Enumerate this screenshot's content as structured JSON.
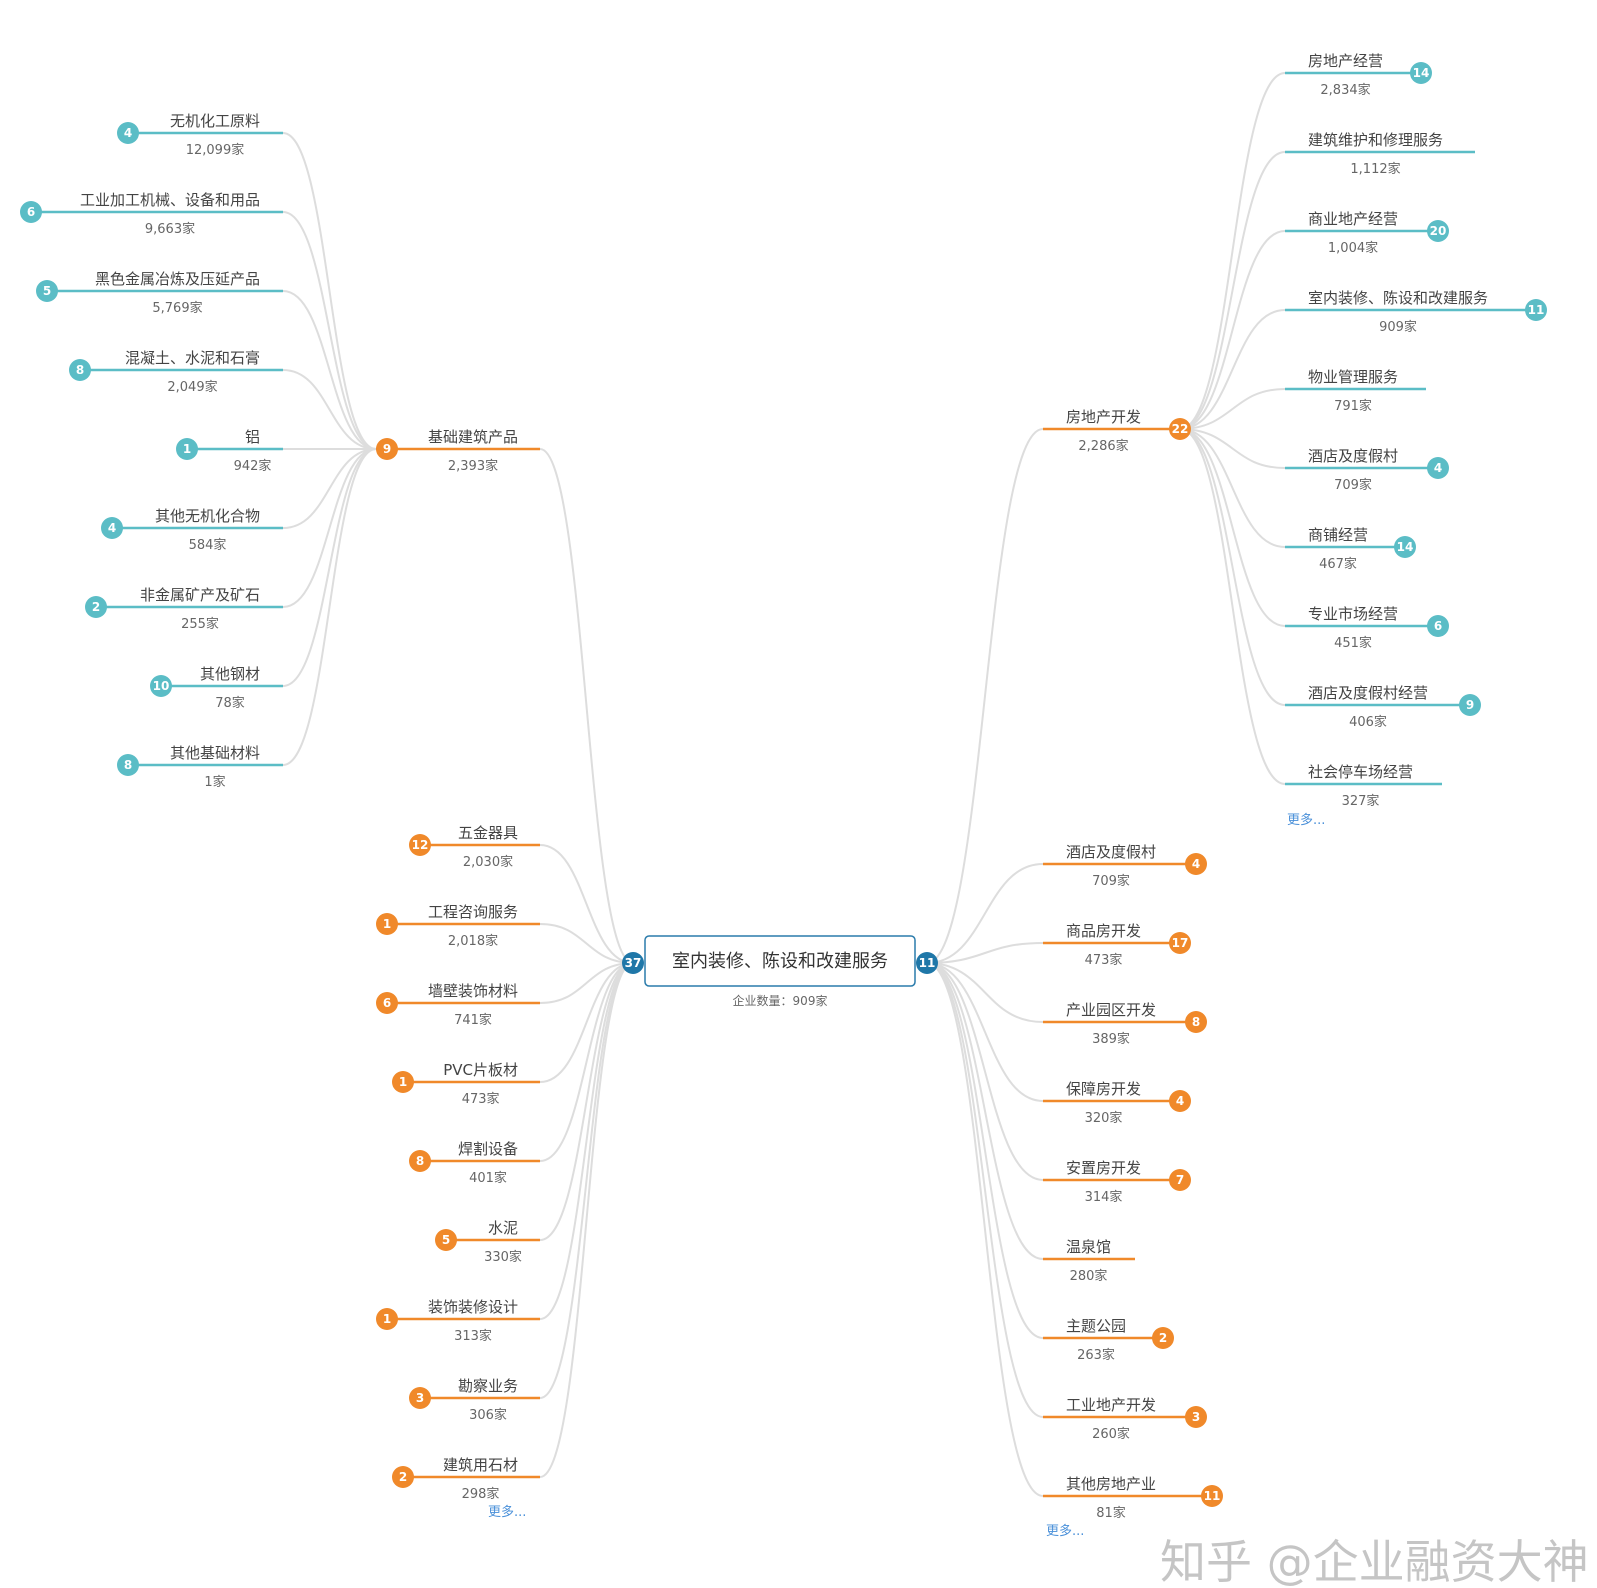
{
  "colors": {
    "teal": "#5bbdc6",
    "orange": "#f0892a",
    "dark_blue": "#1f77a8",
    "link": "#dddddd",
    "more": "#4a90d9"
  },
  "center": {
    "title": "室内装修、陈设和改建服务",
    "subtitle": "企业数量：909家",
    "left_badge": "37",
    "right_badge": "11"
  },
  "left_parent": {
    "label": "基础建筑产品",
    "count": "2,393家",
    "badge": "9",
    "children": [
      {
        "label": "无机化工原料",
        "count": "12,099家",
        "badge": "4"
      },
      {
        "label": "工业加工机械、设备和用品",
        "count": "9,663家",
        "badge": "6"
      },
      {
        "label": "黑色金属冶炼及压延产品",
        "count": "5,769家",
        "badge": "5"
      },
      {
        "label": "混凝土、水泥和石膏",
        "count": "2,049家",
        "badge": "8"
      },
      {
        "label": "铝",
        "count": "942家",
        "badge": "1"
      },
      {
        "label": "其他无机化合物",
        "count": "584家",
        "badge": "4"
      },
      {
        "label": "非金属矿产及矿石",
        "count": "255家",
        "badge": "2"
      },
      {
        "label": "其他钢材",
        "count": "78家",
        "badge": "10"
      },
      {
        "label": "其他基础材料",
        "count": "1家",
        "badge": "8"
      }
    ]
  },
  "left_items": [
    {
      "label": "五金器具",
      "count": "2,030家",
      "badge": "12"
    },
    {
      "label": "工程咨询服务",
      "count": "2,018家",
      "badge": "1"
    },
    {
      "label": "墙壁装饰材料",
      "count": "741家",
      "badge": "6"
    },
    {
      "label": "PVC片板材",
      "count": "473家",
      "badge": "1"
    },
    {
      "label": "焊割设备",
      "count": "401家",
      "badge": "8"
    },
    {
      "label": "水泥",
      "count": "330家",
      "badge": "5"
    },
    {
      "label": "装饰装修设计",
      "count": "313家",
      "badge": "1"
    },
    {
      "label": "勘察业务",
      "count": "306家",
      "badge": "3"
    },
    {
      "label": "建筑用石材",
      "count": "298家",
      "badge": "2"
    }
  ],
  "left_more": "更多...",
  "right_parent": {
    "label": "房地产开发",
    "count": "2,286家",
    "badge": "22",
    "children": [
      {
        "label": "房地产经营",
        "count": "2,834家",
        "badge": "14"
      },
      {
        "label": "建筑维护和修理服务",
        "count": "1,112家",
        "badge": ""
      },
      {
        "label": "商业地产经营",
        "count": "1,004家",
        "badge": "20"
      },
      {
        "label": "室内装修、陈设和改建服务",
        "count": "909家",
        "badge": "11"
      },
      {
        "label": "物业管理服务",
        "count": "791家",
        "badge": ""
      },
      {
        "label": "酒店及度假村",
        "count": "709家",
        "badge": "4"
      },
      {
        "label": "商铺经营",
        "count": "467家",
        "badge": "14"
      },
      {
        "label": "专业市场经营",
        "count": "451家",
        "badge": "6"
      },
      {
        "label": "酒店及度假村经营",
        "count": "406家",
        "badge": "9"
      },
      {
        "label": "社会停车场经营",
        "count": "327家",
        "badge": ""
      }
    ]
  },
  "right_parent_more": "更多...",
  "right_items": [
    {
      "label": "酒店及度假村",
      "count": "709家",
      "badge": "4"
    },
    {
      "label": "商品房开发",
      "count": "473家",
      "badge": "17"
    },
    {
      "label": "产业园区开发",
      "count": "389家",
      "badge": "8"
    },
    {
      "label": "保障房开发",
      "count": "320家",
      "badge": "4"
    },
    {
      "label": "安置房开发",
      "count": "314家",
      "badge": "7"
    },
    {
      "label": "温泉馆",
      "count": "280家",
      "badge": ""
    },
    {
      "label": "主题公园",
      "count": "263家",
      "badge": "2"
    },
    {
      "label": "工业地产开发",
      "count": "260家",
      "badge": "3"
    },
    {
      "label": "其他房地产业",
      "count": "81家",
      "badge": "11"
    }
  ],
  "right_more": "更多...",
  "watermark": "知乎 @企业融资大神"
}
